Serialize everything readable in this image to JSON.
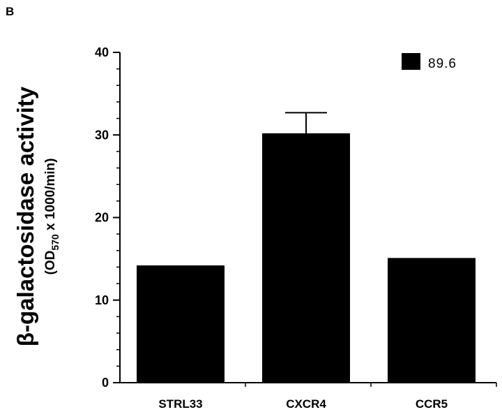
{
  "panel_label": "B",
  "chart_data": {
    "type": "bar",
    "categories": [
      "STRL33",
      "CXCR4",
      "CCR5"
    ],
    "series": [
      {
        "name": "89.6",
        "values": [
          14.2,
          30.2,
          15.1
        ],
        "error_upper": [
          null,
          2.5,
          null
        ],
        "color": "#000000"
      }
    ],
    "ylabel": {
      "symbol": "β",
      "main": "-galactosidase activity",
      "sub_prefix": "(OD",
      "sub_subscript": "570",
      "sub_suffix": " x 1000/min)"
    },
    "xlabel": "",
    "ylim": [
      0,
      40
    ],
    "yticks": [
      0,
      10,
      20,
      30,
      40
    ],
    "yticks_minor_step": 2,
    "grid": false,
    "legend_position": "top-right"
  }
}
